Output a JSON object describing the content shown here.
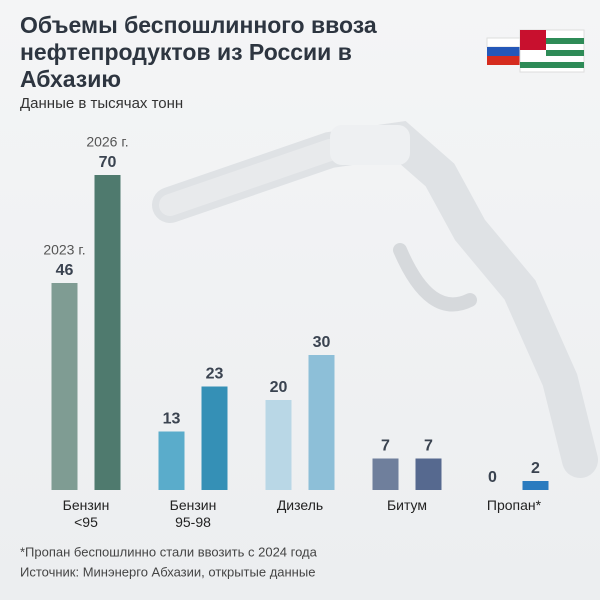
{
  "title": "Объемы беспошлинного ввоза нефтепродуктов из России в Абхазию",
  "chart_data": {
    "type": "bar",
    "subtitle": "Данные в тысячах тонн",
    "categories": [
      "Бензин\n<95",
      "Бензин\n95-98",
      "Дизель",
      "Битум",
      "Пропан*"
    ],
    "series": [
      {
        "name": "2023 г.",
        "colors": [
          "#7f9c93",
          "#5aaccb",
          "#b9d7e6",
          "#6f7f9c",
          "#2a7bbf"
        ],
        "values": [
          46,
          13,
          20,
          7,
          0
        ]
      },
      {
        "name": "2026 г.",
        "colors": [
          "#4f7a6e",
          "#3590b6",
          "#8dbfd8",
          "#56698f",
          "#2a7bbf"
        ],
        "values": [
          70,
          23,
          30,
          7,
          2
        ]
      }
    ],
    "ylim": [
      0,
      70
    ]
  },
  "footnote": "*Пропан беспошлинно стали ввозить с 2024 года",
  "source": "Источник: Минэнерго Абхазии, открытые данные"
}
